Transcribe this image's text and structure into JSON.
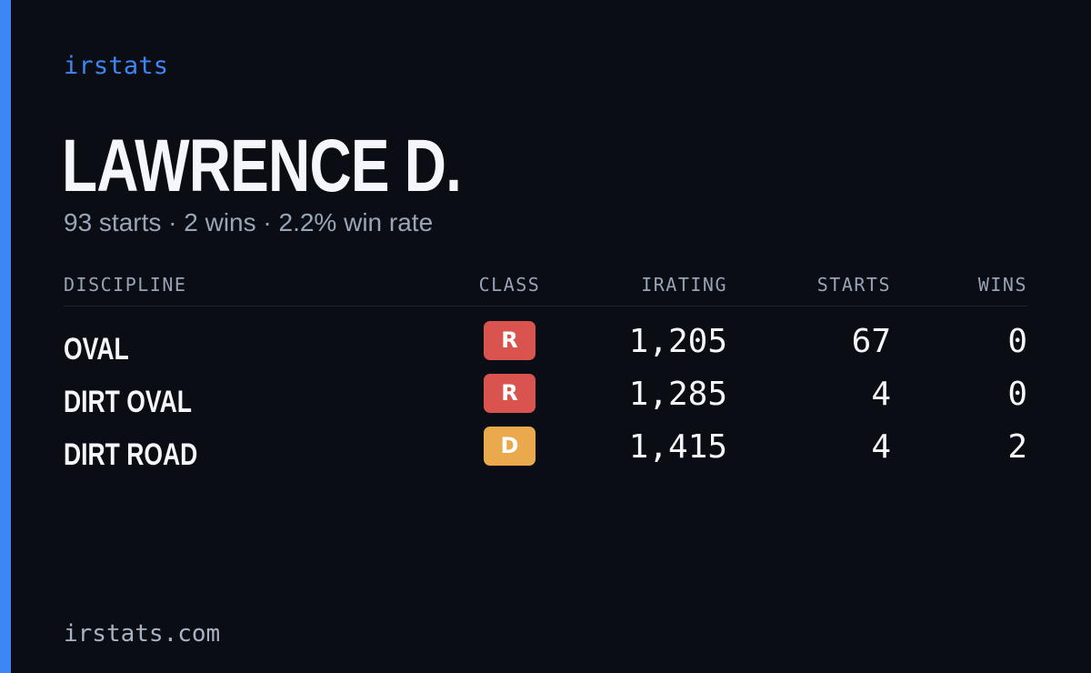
{
  "brand": "irstats",
  "driver": {
    "name": "LAWRENCE D.",
    "summary": "93 starts · 2 wins · 2.2% win rate"
  },
  "table": {
    "headers": {
      "discipline": "DISCIPLINE",
      "class": "CLASS",
      "irating": "IRATING",
      "starts": "STARTS",
      "wins": "WINS"
    },
    "rows": [
      {
        "discipline": "OVAL",
        "class": "R",
        "class_color": "#d9534f",
        "irating": "1,205",
        "starts": "67",
        "wins": "0"
      },
      {
        "discipline": "DIRT OVAL",
        "class": "R",
        "class_color": "#d9534f",
        "irating": "1,285",
        "starts": "4",
        "wins": "0"
      },
      {
        "discipline": "DIRT ROAD",
        "class": "D",
        "class_color": "#eaa94c",
        "irating": "1,415",
        "starts": "4",
        "wins": "2"
      }
    ]
  },
  "footer": "irstats.com",
  "colors": {
    "background": "#0a0d14",
    "accent": "#3d86f5",
    "class_r": "#d9534f",
    "class_d": "#eaa94c"
  }
}
